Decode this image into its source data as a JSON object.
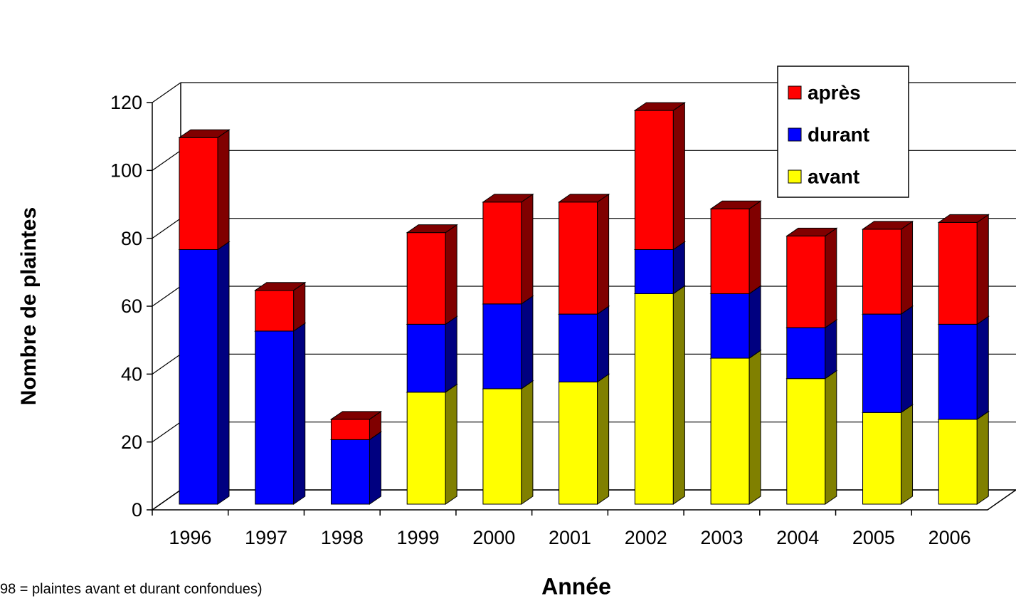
{
  "chart_data": {
    "type": "bar3d_stacked",
    "y_axis_label": "Nombre de plaintes",
    "x_axis_label": "Année",
    "note": "98 = plaintes avant et durant confondues)",
    "categories": [
      "1996",
      "1997",
      "1998",
      "1999",
      "2000",
      "2001",
      "2002",
      "2003",
      "2004",
      "2005",
      "2006"
    ],
    "series": [
      {
        "name": "avant",
        "color": "#ffff00",
        "side_color": "#808000",
        "label_color": "#000000",
        "values": [
          null,
          null,
          null,
          33,
          34,
          36,
          62,
          43,
          37,
          27,
          25
        ]
      },
      {
        "name": "durant",
        "color": "#0000ff",
        "side_color": "#000080",
        "label_color": "#0000ff",
        "values": [
          75,
          51,
          19,
          20,
          25,
          20,
          13,
          19,
          15,
          29,
          28
        ]
      },
      {
        "name": "après",
        "color": "#ff0000",
        "side_color": "#800000",
        "label_color": "#ff0000",
        "values": [
          33,
          12,
          6,
          27,
          30,
          33,
          41,
          25,
          27,
          25,
          30
        ]
      }
    ],
    "ylim": [
      0,
      120
    ],
    "yticks": [
      0,
      20,
      40,
      60,
      80,
      100,
      120
    ],
    "grid": true,
    "legend": "top-right"
  }
}
